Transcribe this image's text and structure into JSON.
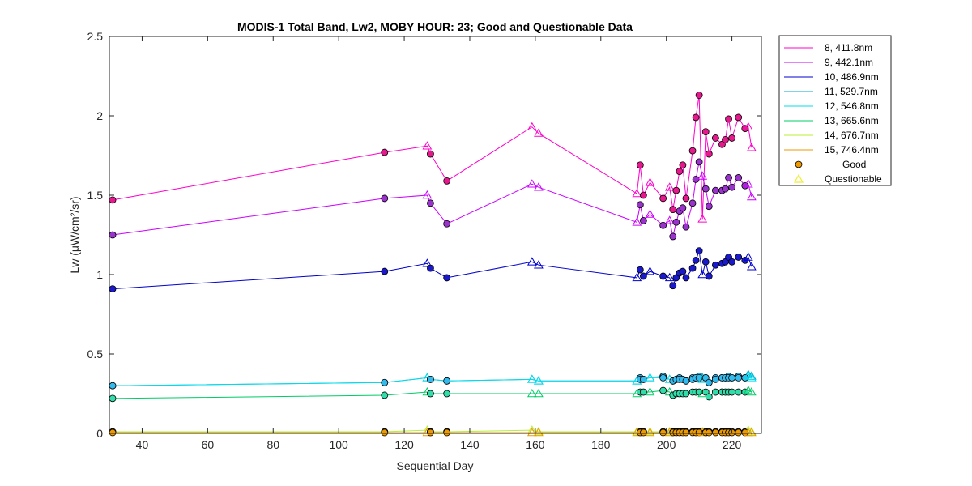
{
  "chart_data": {
    "type": "line",
    "title": "MODIS-1 Total Band,  Lw2, MOBY HOUR: 23;  Good and Questionable Data",
    "xlabel": "Sequential Day",
    "ylabel": "Lw (μW/cm²/sr)",
    "xlim": [
      30,
      229
    ],
    "ylim": [
      0,
      2.5
    ],
    "xticks": [
      "40",
      "60",
      "80",
      "100",
      "120",
      "140",
      "160",
      "180",
      "200",
      "220"
    ],
    "yticks": [
      "0",
      "0.5",
      "1",
      "1.5",
      "2",
      "2.5"
    ],
    "x": [
      31,
      114,
      127,
      128,
      133,
      159,
      161,
      191,
      192,
      193,
      195,
      199,
      201,
      202,
      203,
      204,
      205,
      206,
      208,
      209,
      210,
      211,
      212,
      213,
      215,
      217,
      218,
      219,
      220,
      222,
      224,
      225,
      226
    ],
    "quality": [
      "G",
      "G",
      "Q",
      "G",
      "G",
      "Q",
      "Q",
      "Q",
      "G",
      "G",
      "Q",
      "G",
      "Q",
      "G",
      "G",
      "G",
      "G",
      "G",
      "G",
      "G",
      "G",
      "Q",
      "G",
      "G",
      "G",
      "G",
      "G",
      "G",
      "G",
      "G",
      "G",
      "Q",
      "Q"
    ],
    "series": [
      {
        "name": "8, 411.8nm",
        "color": "#ff00cc",
        "marker_color": "#e6198c",
        "values": [
          1.47,
          1.77,
          1.81,
          1.76,
          1.59,
          1.93,
          1.89,
          1.51,
          1.69,
          1.5,
          1.58,
          1.48,
          1.55,
          1.41,
          1.53,
          1.65,
          1.69,
          1.48,
          1.78,
          1.99,
          2.13,
          1.35,
          1.9,
          1.76,
          1.86,
          1.82,
          1.85,
          1.98,
          1.86,
          1.99,
          1.92,
          1.93,
          1.8
        ]
      },
      {
        "name": "9, 442.1nm",
        "color": "#cc00ff",
        "marker_color": "#9933cc",
        "values": [
          1.25,
          1.48,
          1.5,
          1.45,
          1.32,
          1.57,
          1.55,
          1.33,
          1.44,
          1.34,
          1.38,
          1.31,
          1.34,
          1.24,
          1.33,
          1.4,
          1.42,
          1.3,
          1.45,
          1.6,
          1.71,
          1.62,
          1.54,
          1.43,
          1.53,
          1.53,
          1.54,
          1.61,
          1.55,
          1.61,
          1.56,
          1.57,
          1.49
        ]
      },
      {
        "name": "10, 486.9nm",
        "color": "#0000cc",
        "marker_color": "#1a1acc",
        "values": [
          0.91,
          1.02,
          1.07,
          1.04,
          0.98,
          1.08,
          1.06,
          0.98,
          1.03,
          0.99,
          1.02,
          0.99,
          0.98,
          0.93,
          0.98,
          1.01,
          1.02,
          0.98,
          1.04,
          1.09,
          1.15,
          1.0,
          1.08,
          0.99,
          1.06,
          1.07,
          1.08,
          1.11,
          1.08,
          1.11,
          1.09,
          1.11,
          1.05
        ]
      },
      {
        "name": "11, 529.7nm",
        "color": "#00aacc",
        "marker_color": "#33aadd",
        "values": [
          0.3,
          0.32,
          0.35,
          0.34,
          0.33,
          0.34,
          0.33,
          0.33,
          0.35,
          0.34,
          0.35,
          0.36,
          0.34,
          0.33,
          0.34,
          0.35,
          0.34,
          0.33,
          0.35,
          0.35,
          0.36,
          0.35,
          0.35,
          0.32,
          0.35,
          0.35,
          0.35,
          0.36,
          0.35,
          0.36,
          0.35,
          0.37,
          0.36
        ]
      },
      {
        "name": "12, 546.8nm",
        "color": "#00ddee",
        "marker_color": "#33bbee",
        "values": [
          0.3,
          0.32,
          0.35,
          0.34,
          0.33,
          0.34,
          0.33,
          0.33,
          0.34,
          0.34,
          0.35,
          0.35,
          0.34,
          0.33,
          0.34,
          0.34,
          0.34,
          0.33,
          0.34,
          0.35,
          0.35,
          0.34,
          0.35,
          0.32,
          0.34,
          0.35,
          0.35,
          0.35,
          0.35,
          0.35,
          0.35,
          0.36,
          0.35
        ]
      },
      {
        "name": "13, 665.6nm",
        "color": "#00cc66",
        "marker_color": "#33ddaa",
        "values": [
          0.22,
          0.24,
          0.26,
          0.25,
          0.25,
          0.25,
          0.25,
          0.25,
          0.26,
          0.26,
          0.26,
          0.27,
          0.26,
          0.24,
          0.25,
          0.25,
          0.25,
          0.25,
          0.26,
          0.26,
          0.26,
          0.25,
          0.26,
          0.23,
          0.26,
          0.26,
          0.26,
          0.26,
          0.26,
          0.26,
          0.26,
          0.27,
          0.26
        ]
      },
      {
        "name": "14, 676.7nm",
        "color": "#bbee33",
        "marker_color": "#444400",
        "values": [
          0.01,
          0.01,
          0.02,
          0.01,
          0.01,
          0.02,
          0.01,
          0.01,
          0.01,
          0.01,
          0.01,
          0.01,
          0.01,
          0.01,
          0.01,
          0.01,
          0.01,
          0.01,
          0.01,
          0.01,
          0.01,
          0.01,
          0.01,
          0.01,
          0.01,
          0.01,
          0.01,
          0.01,
          0.01,
          0.01,
          0.01,
          0.02,
          0.01
        ]
      },
      {
        "name": "15, 746.4nm",
        "color": "#ee9900",
        "marker_color": "#ee9900",
        "values": [
          0.005,
          0.005,
          0.005,
          0.005,
          0.005,
          0.005,
          0.005,
          0.005,
          0.005,
          0.005,
          0.005,
          0.005,
          0.005,
          0.005,
          0.005,
          0.005,
          0.005,
          0.005,
          0.005,
          0.005,
          0.005,
          0.005,
          0.005,
          0.005,
          0.005,
          0.005,
          0.005,
          0.005,
          0.005,
          0.005,
          0.005,
          0.005,
          0.005
        ]
      }
    ],
    "legend": {
      "placement": "outside-right-top",
      "good_label": "Good",
      "questionable_label": "Questionable",
      "good_color": "#ee9900",
      "questionable_color": "#eeee33"
    },
    "grid": false
  }
}
